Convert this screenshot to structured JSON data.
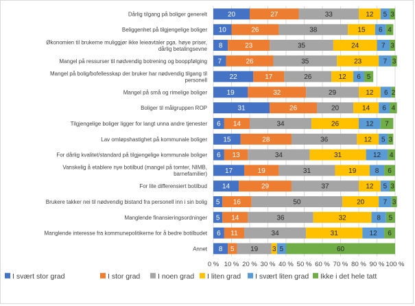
{
  "chart_data": {
    "type": "bar",
    "orientation": "horizontal",
    "stacked": "percent",
    "categories": [
      [
        "Dårlig tilgang på boliger generelt"
      ],
      [
        "Beliggenhet på tilgjengelige boliger"
      ],
      [
        "Økonomien til brukerne muliggjør ikke leieavtaler pga. høye priser,",
        "dårlig betalingsevne"
      ],
      [
        "Mangel på ressurser til nødvendig botrening og booppfølging"
      ],
      [
        "Mangel på bolig/bofellesskap der bruker har nødvendig tilgang til",
        "personell"
      ],
      [
        "Mangel på små og rimelige boliger"
      ],
      [
        "Boliger til målgruppen ROP"
      ],
      [
        "Tilgjengelige boliger ligger for langt unna andre tjenester"
      ],
      [
        "Lav omløpshastighet på kommunale boliger"
      ],
      [
        "For dårlig kvalitet/standard på tilgjengelige kommunale boliger"
      ],
      [
        "Vanskelig å etablere nye botilbud (mangel på tomter, NIMB,",
        "barnefamilier)"
      ],
      [
        "For lite differensiert botilbud"
      ],
      [
        "Brukere takker nei til nødvendig bistand fra personell inn i sin bolig"
      ],
      [
        "Manglende finansieringsordninger"
      ],
      [
        "Manglende interesse fra kommunepolitikerne for å bedre botilbudet"
      ],
      [
        "Annet"
      ]
    ],
    "series": [
      {
        "name": "I svært stor grad",
        "color": "#4472c4",
        "label_color": "#ffffff",
        "values": [
          20,
          10,
          8,
          7,
          22,
          19,
          31,
          6,
          15,
          6,
          17,
          14,
          5,
          5,
          6,
          8
        ]
      },
      {
        "name": "I stor grad",
        "color": "#ed7d31",
        "label_color": "#ffffff",
        "values": [
          27,
          26,
          23,
          26,
          17,
          32,
          26,
          14,
          28,
          13,
          19,
          29,
          16,
          14,
          11,
          5
        ]
      },
      {
        "name": "I noen grad",
        "color": "#a5a5a5",
        "label_color": "#262626",
        "values": [
          33,
          38,
          35,
          35,
          26,
          29,
          20,
          34,
          36,
          34,
          31,
          37,
          50,
          36,
          34,
          19
        ]
      },
      {
        "name": "I liten grad",
        "color": "#ffc000",
        "label_color": "#262626",
        "values": [
          12,
          15,
          24,
          23,
          12,
          12,
          14,
          26,
          12,
          31,
          19,
          12,
          20,
          32,
          31,
          3
        ]
      },
      {
        "name": "I svært liten grad",
        "color": "#5b9bd5",
        "label_color": "#262626",
        "values": [
          5,
          6,
          7,
          7,
          6,
          6,
          6,
          12,
          5,
          12,
          8,
          5,
          7,
          8,
          12,
          5
        ]
      },
      {
        "name": "Ikke i det hele tatt",
        "color": "#70ad47",
        "label_color": "#262626",
        "values": [
          3,
          4,
          3,
          3,
          5,
          2,
          4,
          7,
          3,
          4,
          6,
          3,
          3,
          5,
          6,
          60
        ]
      }
    ],
    "x_ticks": [
      "0 %",
      "10 %",
      "20 %",
      "30 %",
      "40 %",
      "50 %",
      "60 %",
      "70 %",
      "80 %",
      "90 %",
      "100 %"
    ],
    "xlim": [
      0,
      100
    ],
    "grid": true,
    "legend_position": "bottom"
  }
}
